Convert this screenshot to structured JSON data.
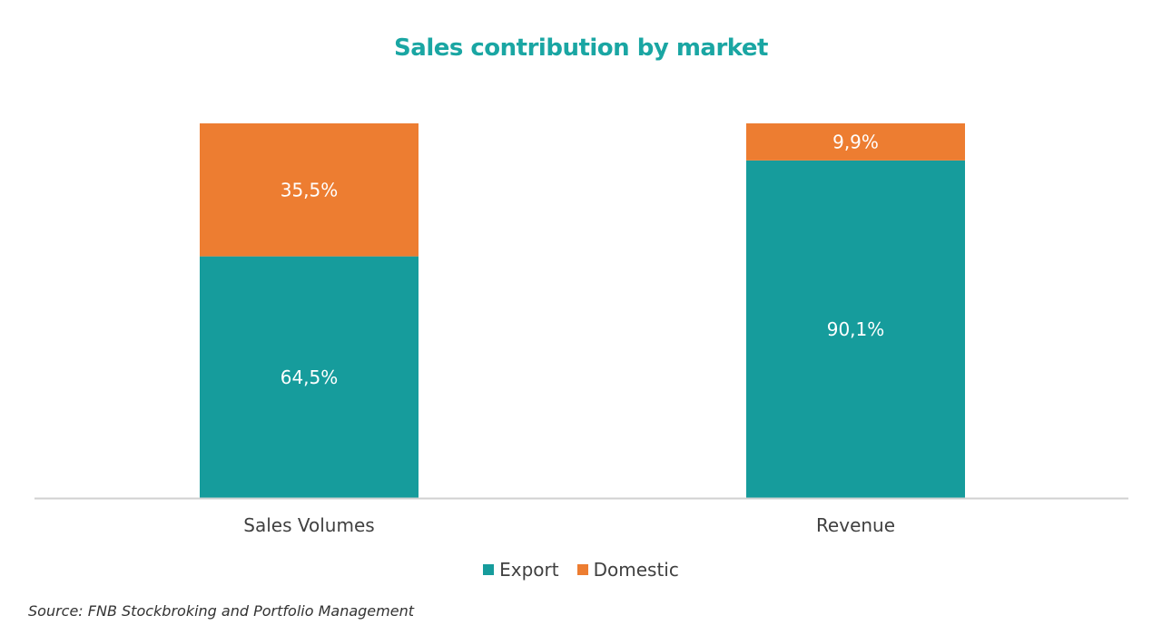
{
  "colors": {
    "export": "#169C9C",
    "domestic": "#ED7D31",
    "title": "#1AA6A3",
    "axis_line": "#D0D0D0",
    "label_text": "#ffffff",
    "category_text": "#404040"
  },
  "chart_data": {
    "type": "bar",
    "stacked": true,
    "title": "Sales contribution by market",
    "categories": [
      "Sales Volumes",
      "Revenue"
    ],
    "series": [
      {
        "name": "Export",
        "values": [
          64.5,
          90.1
        ],
        "labels": [
          "64,5%",
          "90,1%"
        ]
      },
      {
        "name": "Domestic",
        "values": [
          35.5,
          9.9
        ],
        "labels": [
          "35,5%",
          "9,9%"
        ]
      }
    ],
    "ylim": [
      0,
      100
    ],
    "grid": false,
    "legend": "bottom",
    "source": "Source: FNB Stockbroking and Portfolio Management"
  }
}
